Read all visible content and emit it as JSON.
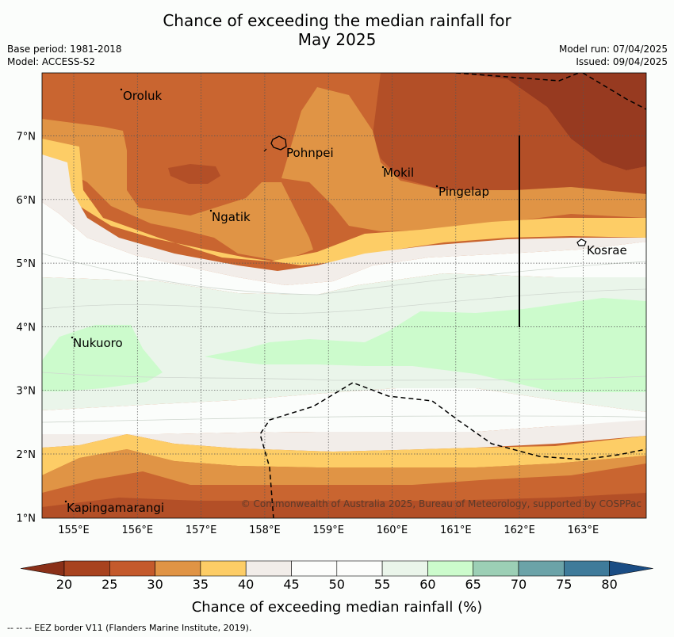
{
  "title_line1": "Chance of exceeding the median rainfall for",
  "title_line2": "May 2025",
  "base_period": "Base period: 1981-2018",
  "model": "Model: ACCESS-S2",
  "model_run": "Model run: 07/04/2025",
  "issued": "Issued: 09/04/2025",
  "copyright": "© Commonwealth of Australia 2025, Bureau of Meteorology, supported by COSPPac",
  "lon_labels": [
    "155°E",
    "156°E",
    "157°E",
    "158°E",
    "159°E",
    "160°E",
    "161°E",
    "162°E",
    "163°E"
  ],
  "lat_labels": [
    "7°N",
    "6°N",
    "5°N",
    "4°N",
    "3°N",
    "2°N",
    "1°N"
  ],
  "places": [
    {
      "name": "Oroluk"
    },
    {
      "name": "Pohnpei"
    },
    {
      "name": "Mokil"
    },
    {
      "name": "Pingelap"
    },
    {
      "name": "Ngatik"
    },
    {
      "name": "Kosrae"
    },
    {
      "name": "Nukuoro"
    },
    {
      "name": "Kapingamarangi"
    }
  ],
  "colorbar": {
    "title": "Chance of exceeding median rainfall (%)",
    "ticks": [
      "20",
      "25",
      "30",
      "35",
      "40",
      "45",
      "50",
      "55",
      "60",
      "65",
      "70",
      "75",
      "80"
    ],
    "colors": [
      "#a8431f",
      "#c45a2c",
      "#e09445",
      "#fdcd66",
      "#f2ede9",
      "#fcfdfb",
      "#fcfdfb",
      "#eaf5ea",
      "#ccfbcc",
      "#9ccfb5",
      "#6ba3a8",
      "#3f7b9a",
      "#1a4d84"
    ],
    "under_color": "#8a3018",
    "over_color": "#1a4d84"
  },
  "footnote": "--  --  -- EEZ border V11 (Flanders Marine Institute, 2019)."
}
